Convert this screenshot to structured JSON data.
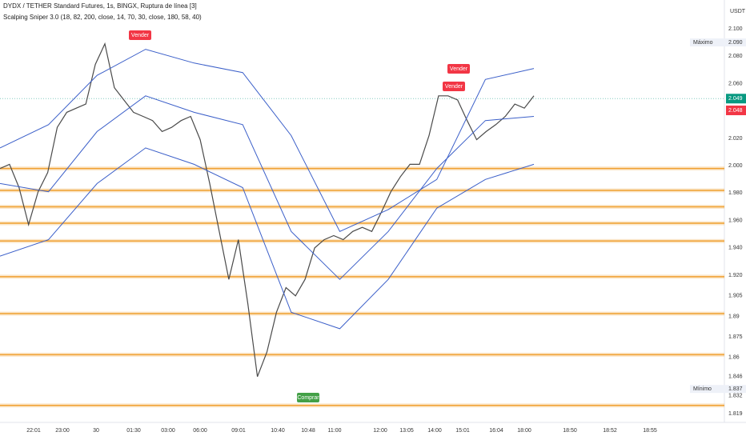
{
  "chart_data": {
    "type": "line",
    "title": "DYDX / TETHER Standard Futures, 1s, BINGX, Ruptura de línea [3]",
    "subtitle": "Scalping Sniper 3.0 (18, 82, 200, close, 14, 70, 30, close, 180, 58, 40)",
    "currency": "USDT",
    "ylim": [
      1.8085,
      2.121
    ],
    "yticks": [
      {
        "value": 2.1,
        "label": "2.100"
      },
      {
        "value": 2.08,
        "label": "2.080"
      },
      {
        "value": 2.06,
        "label": "2.060"
      },
      {
        "value": 2.02,
        "label": "2.020"
      },
      {
        "value": 2.0,
        "label": "2.000"
      },
      {
        "value": 1.98,
        "label": "1.980"
      },
      {
        "value": 1.96,
        "label": "1.960"
      },
      {
        "value": 1.94,
        "label": "1.940"
      },
      {
        "value": 1.92,
        "label": "1.920"
      },
      1.905,
      1.89,
      1.875,
      1.86,
      1.846,
      1.832,
      1.819
    ],
    "x_tick_labels": [
      "22:01",
      "23:00",
      "30",
      "01:30",
      "03:00",
      "06:00",
      "09:01",
      "10:40",
      "10:48",
      "11:00",
      "12:00",
      "13:05",
      "14:00",
      "15:01",
      "16:04",
      "18:00",
      "18:50",
      "18:52",
      "18:55"
    ],
    "series": [
      {
        "name": "Price",
        "color": "#4a4a4a",
        "values": [
          1.998,
          2.001,
          1.984,
          1.957,
          1.981,
          1.995,
          2.028,
          2.039,
          2.042,
          2.045,
          2.074,
          2.089,
          2.057,
          2.048,
          2.039,
          2.036,
          2.033,
          2.025,
          2.028,
          2.033,
          2.036,
          2.019,
          1.987,
          1.952,
          1.917,
          1.946,
          1.899,
          1.846,
          1.864,
          1.893,
          1.911,
          1.905,
          1.917,
          1.94,
          1.946,
          1.949,
          1.946,
          1.952,
          1.955,
          1.952,
          1.966,
          1.981,
          1.992,
          2.001,
          2.001,
          2.022,
          2.051,
          2.051,
          2.048,
          2.033,
          2.019,
          2.025,
          2.03,
          2.036,
          2.045,
          2.042,
          2.051
        ]
      },
      {
        "name": "Upper band",
        "color": "#3b5fc9",
        "values": [
          2.013,
          2.03,
          2.066,
          2.085,
          2.075,
          2.068,
          2.022,
          1.952,
          1.968,
          1.99,
          2.063,
          2.071
        ]
      },
      {
        "name": "Middle band",
        "color": "#3b5fc9",
        "values": [
          1.987,
          1.981,
          2.025,
          2.051,
          2.039,
          2.03,
          1.952,
          1.917,
          1.952,
          1.998,
          2.033,
          2.036
        ]
      },
      {
        "name": "Lower band",
        "color": "#3b5fc9",
        "values": [
          1.934,
          1.946,
          1.987,
          2.013,
          2.001,
          1.984,
          1.893,
          1.881,
          1.917,
          1.969,
          1.99,
          2.001
        ]
      }
    ],
    "levels": [
      1.998,
      1.982,
      1.97,
      1.958,
      1.945,
      1.919,
      1.892,
      1.862,
      1.825
    ],
    "level_color": "#f0a030",
    "annotations": [
      "Vender",
      "Vender",
      "Vender",
      "Comprar"
    ],
    "markers": [
      {
        "label": "Máximo",
        "value": 2.09,
        "value_label": "2.090"
      },
      {
        "label": "Mínimo",
        "value": 1.837,
        "value_label": "1.837"
      }
    ],
    "price_labels": [
      {
        "value": 2.049,
        "label": "2.049",
        "color": "#089981"
      },
      {
        "value": 2.048,
        "label": "2.048",
        "color": "#f23645"
      }
    ]
  }
}
